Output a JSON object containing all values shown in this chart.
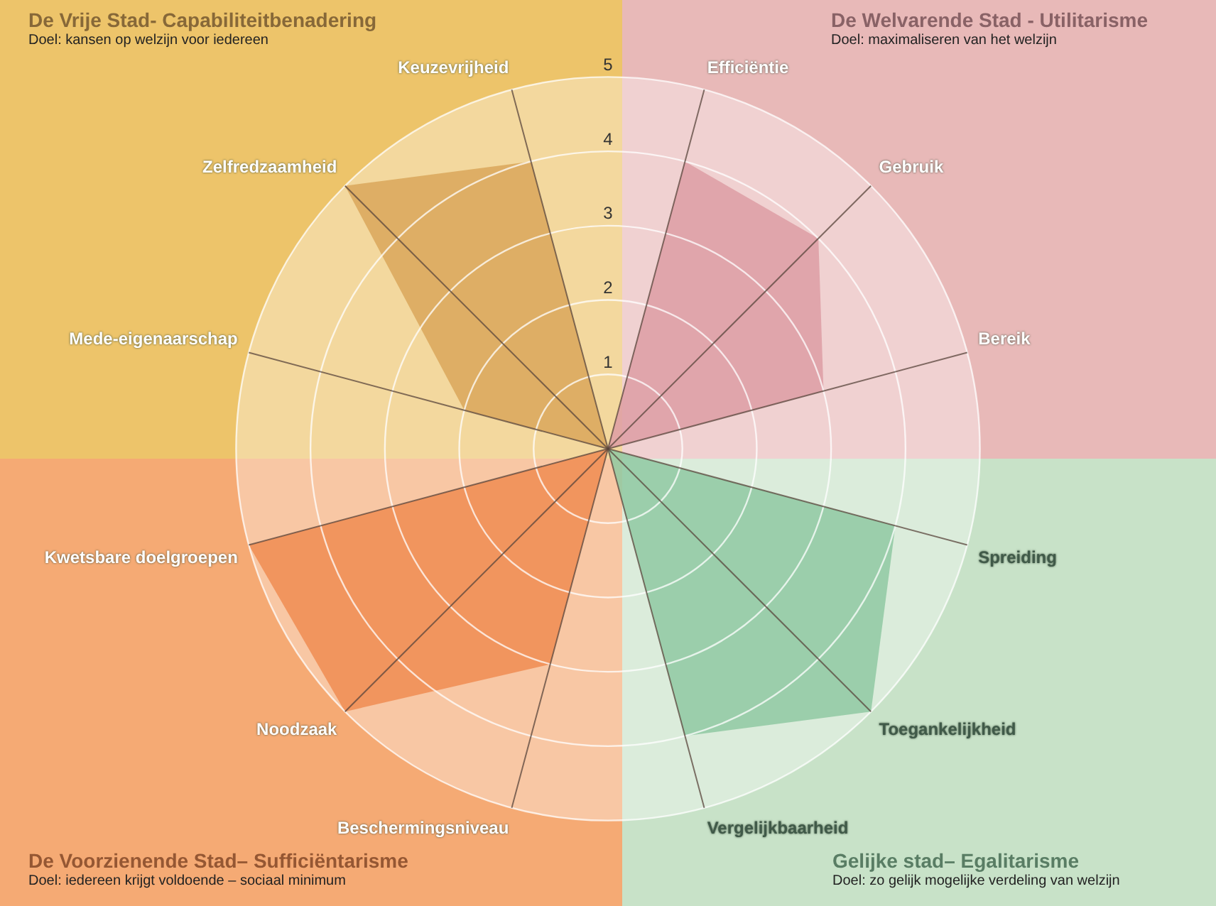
{
  "chart_data": {
    "type": "radar",
    "categories": [
      "Efficiëntie",
      "Gebruik",
      "Bereik",
      "Spreiding",
      "Toegankelijkheid",
      "Vergelijkbaarheid",
      "Beschermingsniveau",
      "Noodzaak",
      "Kwetsbare doelgroepen",
      "Mede-eigenaarschap",
      "Zelfredzaamheid",
      "Keuzevrijheid"
    ],
    "series": [
      {
        "color": "#dd9ea4",
        "values": [
          4,
          4,
          3,
          null,
          null,
          null,
          null,
          null,
          null,
          null,
          null,
          null
        ]
      },
      {
        "color": "#8fc9a2",
        "values": [
          null,
          null,
          null,
          4,
          5,
          4,
          null,
          null,
          null,
          null,
          null,
          null
        ]
      },
      {
        "color": "#f08c52",
        "values": [
          null,
          null,
          null,
          null,
          null,
          null,
          3,
          5,
          5,
          null,
          null,
          null
        ]
      },
      {
        "color": "#d9a75a",
        "values": [
          null,
          null,
          null,
          null,
          null,
          null,
          null,
          null,
          null,
          2,
          5,
          4
        ]
      }
    ],
    "annotations": [
      "De Welvarende Stad - Utilitarisme",
      "Doel: maximaliseren van het welzijn",
      "Gelijke stad– Egalitarisme",
      "Doel: zo gelijk mogelijke verdeling van welzijn",
      "De Voorzienende Stad– Sufficiëntarisme",
      "Doel: iedereen krijgt voldoende – sociaal minimum",
      "De Vrije Stad- Capabiliteitbenadering",
      "Doel: kansen op welzijn voor iedereen"
    ],
    "ylim": [
      0,
      5
    ],
    "yticks": [
      1,
      2,
      3,
      4,
      5
    ],
    "grid": true
  }
}
